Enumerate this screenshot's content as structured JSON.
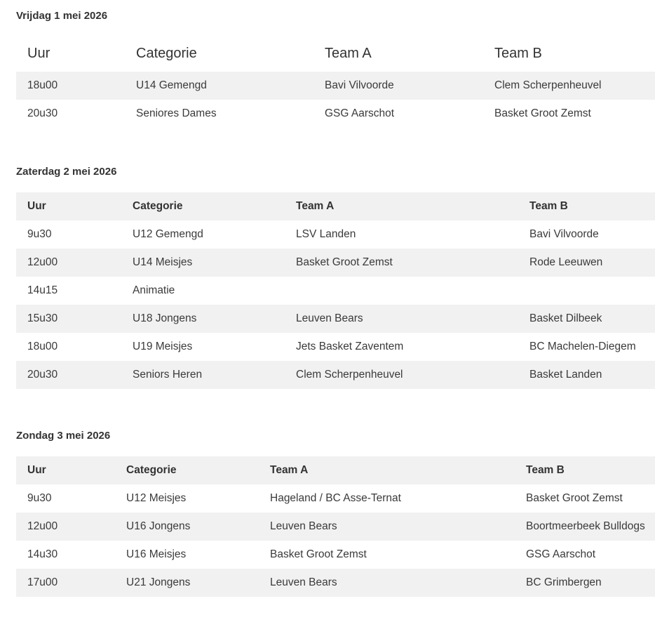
{
  "columns": [
    "Uur",
    "Categorie",
    "Team A",
    "Team B"
  ],
  "days": [
    {
      "title": "Vrijdag 1 mei 2026",
      "rows": [
        [
          "18u00",
          "U14 Gemengd",
          "Bavi Vilvoorde",
          "Clem Scherpenheuvel"
        ],
        [
          "20u30",
          "Seniores Dames",
          "GSG Aarschot",
          "Basket Groot Zemst"
        ]
      ]
    },
    {
      "title": "Zaterdag 2 mei 2026",
      "rows": [
        [
          "9u30",
          "U12 Gemengd",
          "LSV Landen",
          "Bavi Vilvoorde"
        ],
        [
          "12u00",
          "U14 Meisjes",
          "Basket Groot Zemst",
          "Rode Leeuwen"
        ],
        [
          "14u15",
          "Animatie",
          "",
          ""
        ],
        [
          "15u30",
          "U18 Jongens",
          "Leuven Bears",
          "Basket Dilbeek"
        ],
        [
          "18u00",
          "U19 Meisjes",
          "Jets Basket Zaventem",
          "BC Machelen-Diegem"
        ],
        [
          "20u30",
          "Seniors Heren",
          "Clem Scherpenheuvel",
          "Basket Landen"
        ]
      ]
    },
    {
      "title": "Zondag 3 mei 2026",
      "rows": [
        [
          "9u30",
          "U12 Meisjes",
          "Hageland / BC Asse-Ternat",
          "Basket Groot Zemst"
        ],
        [
          "12u00",
          "U16 Jongens",
          "Leuven Bears",
          "Boortmeerbeek Bulldogs"
        ],
        [
          "14u30",
          "U16 Meisjes",
          "Basket Groot Zemst",
          "GSG Aarschot"
        ],
        [
          "17u00",
          "U21 Jongens",
          "Leuven Bears",
          "BC Grimbergen"
        ]
      ]
    }
  ]
}
